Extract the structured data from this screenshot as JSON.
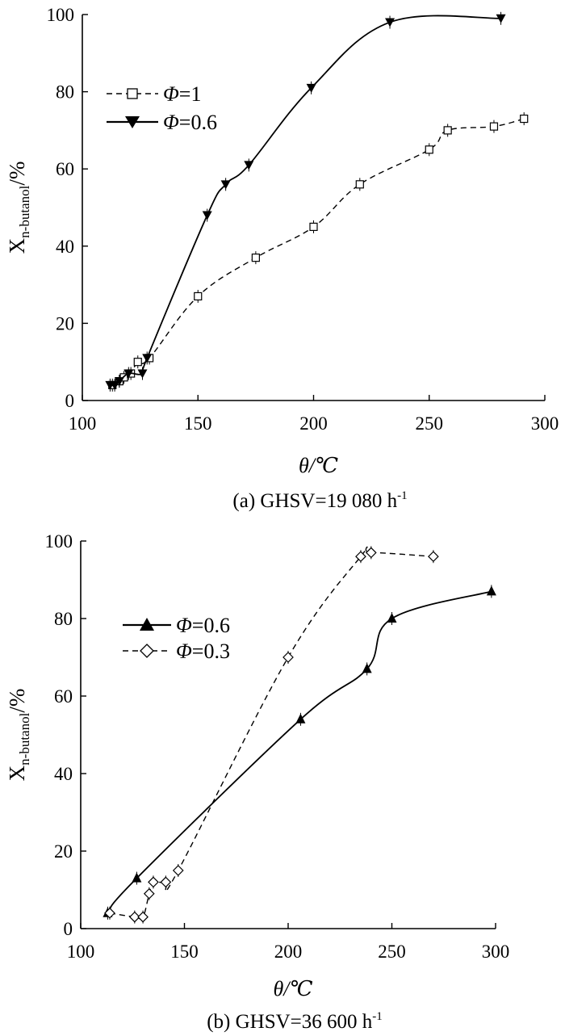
{
  "chart_data": [
    {
      "type": "line",
      "panel": "a",
      "caption": "(a) GHSV=19 080 h",
      "caption_sup": "-1",
      "xlabel": "θ/℃",
      "ylabel_main": "X",
      "ylabel_sub": "n-butanol",
      "ylabel_unit": "/%",
      "xlim": [
        100,
        300
      ],
      "ylim": [
        0,
        100
      ],
      "xticks": [
        "100",
        "150",
        "200",
        "250",
        "300"
      ],
      "yticks": [
        "0",
        "20",
        "40",
        "60",
        "80",
        "100"
      ],
      "grid": false,
      "legend_position": "upper-left",
      "series": [
        {
          "name": "Φ=1",
          "line": "dashed",
          "marker": "open-square",
          "x": [
            113,
            116,
            118,
            121,
            124,
            129,
            150,
            175,
            200,
            220,
            250,
            258,
            278,
            291
          ],
          "y": [
            4,
            5,
            6,
            7,
            10,
            11,
            27,
            37,
            45,
            56,
            65,
            70,
            71,
            73
          ]
        },
        {
          "name": "Φ=0.6",
          "line": "solid",
          "marker": "filled-down-triangle",
          "x": [
            112,
            114,
            116,
            120,
            126,
            128,
            154,
            162,
            172,
            199,
            233,
            281
          ],
          "y": [
            4,
            4,
            5,
            7,
            7,
            11,
            48,
            56,
            61,
            81,
            98,
            99
          ]
        }
      ]
    },
    {
      "type": "line",
      "panel": "b",
      "caption": "(b) GHSV=36 600 h",
      "caption_sup": "-1",
      "xlabel": "θ/℃",
      "ylabel_main": "X",
      "ylabel_sub": "n-butanol",
      "ylabel_unit": "/%",
      "xlim": [
        100,
        300
      ],
      "ylim": [
        0,
        100
      ],
      "xticks": [
        "100",
        "150",
        "200",
        "250",
        "300"
      ],
      "yticks": [
        "0",
        "20",
        "40",
        "60",
        "80",
        "100"
      ],
      "grid": false,
      "legend_position": "upper-left",
      "series": [
        {
          "name": "Φ=0.6",
          "line": "solid",
          "marker": "filled-up-triangle",
          "x": [
            113,
            127,
            206,
            238,
            250,
            298
          ],
          "y": [
            4,
            13,
            54,
            67,
            80,
            87
          ]
        },
        {
          "name": "Φ=0.3",
          "line": "dashed",
          "marker": "open-diamond",
          "x": [
            114,
            126,
            130,
            133,
            135,
            141,
            147,
            200,
            235,
            240,
            270
          ],
          "y": [
            4,
            3,
            3,
            9,
            12,
            12,
            15,
            70,
            96,
            97,
            96
          ]
        }
      ]
    }
  ]
}
